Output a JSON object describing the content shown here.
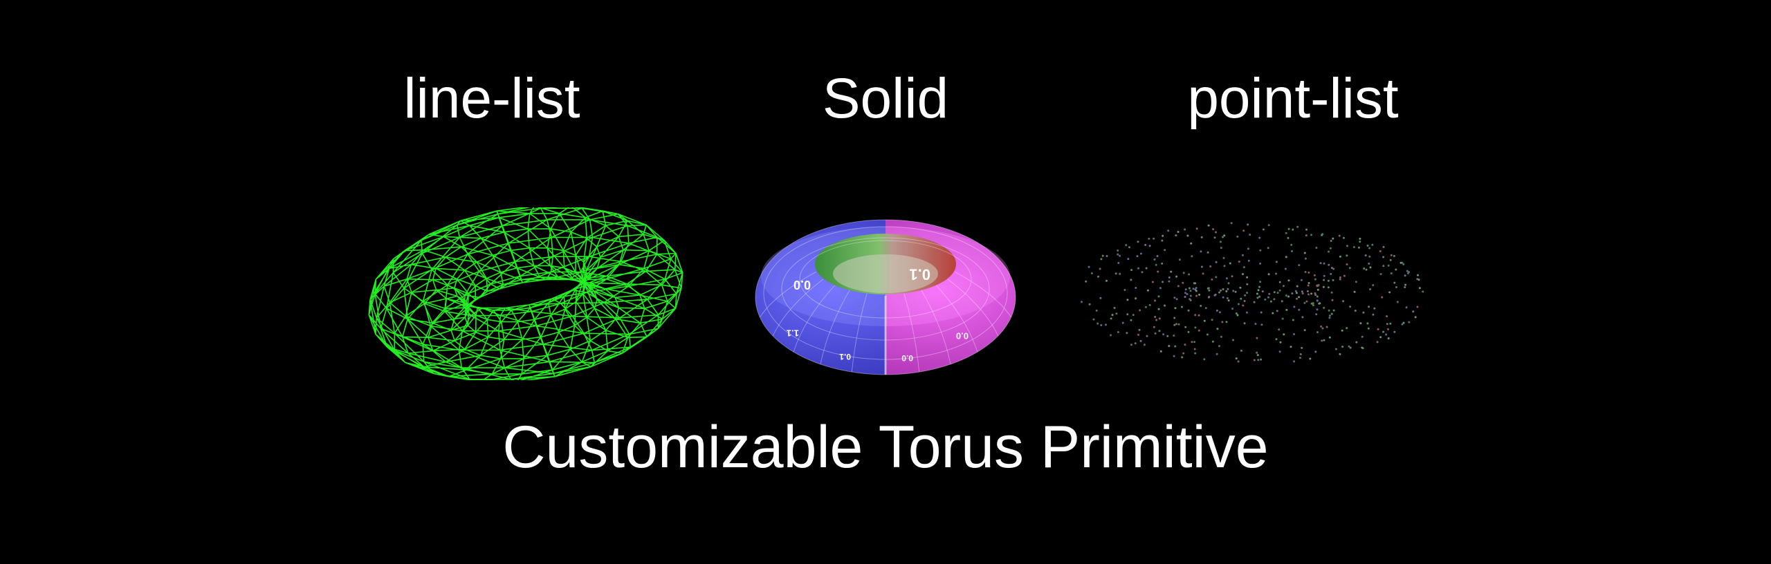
{
  "labels": {
    "line": "line-list",
    "solid": "Solid",
    "point": "point-list"
  },
  "caption": "Customizable Torus Primitive",
  "colors": {
    "background": "#000000",
    "text": "#ffffff",
    "wire": "#22ee22",
    "solid_blue": "#4646e6",
    "solid_magenta": "#d03ad8",
    "solid_green": "#3fa83f",
    "solid_red": "#c0463c",
    "points": "#6a8f6a"
  },
  "solid_uv_labels": [
    "0.0",
    "0.1",
    "1.1",
    "0.1",
    "0.0",
    "0.0"
  ]
}
